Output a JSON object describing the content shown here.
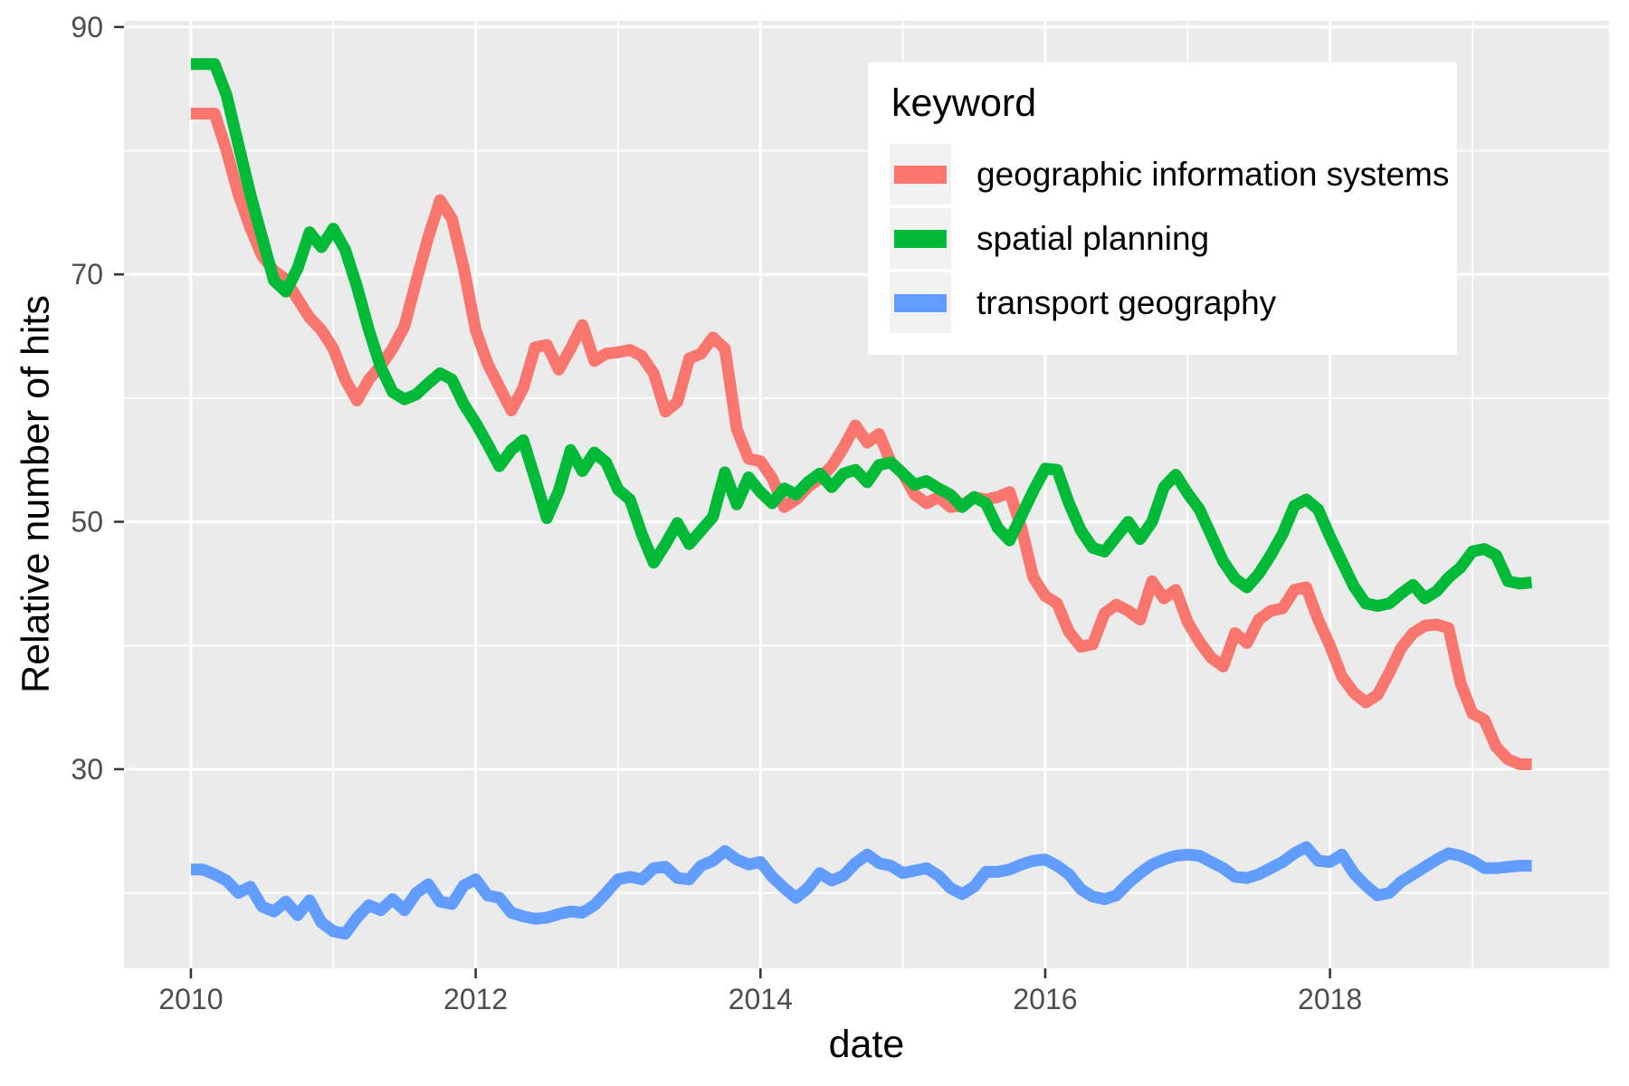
{
  "chart_data": {
    "type": "line",
    "title": "",
    "xlabel": "date",
    "ylabel": "Relative number of hits",
    "legend": {
      "title": "keyword",
      "position": "inside-top-right"
    },
    "x_unit": "year-month",
    "x_start": 2010.0,
    "x_step": 0.0833333,
    "x_domain": [
      2009.53,
      2019.96
    ],
    "y_domain": [
      13.9,
      90.5
    ],
    "x_ticks": {
      "major": [
        2010,
        2012,
        2014,
        2016,
        2018
      ],
      "minor": [
        2011,
        2013,
        2015,
        2017,
        2019
      ]
    },
    "y_ticks": {
      "major": [
        30,
        50,
        70,
        90
      ],
      "minor": [
        20,
        40,
        60,
        80
      ]
    },
    "grid": true,
    "panel_bg": "#EBEBEB",
    "grid_color": "#FFFFFF",
    "tick_color": "#333333",
    "tick_label_color": "#4D4D4D",
    "line_width": 13,
    "series": [
      {
        "name": "geographic information systems",
        "color": "#F8766D",
        "values": [
          83,
          83,
          83,
          80,
          76.5,
          73.8,
          71.5,
          70.3,
          69.6,
          68,
          66.5,
          65.5,
          64,
          61.5,
          59.8,
          61.5,
          62.6,
          64,
          65.8,
          69.5,
          73,
          76,
          74.5,
          70.5,
          65.5,
          62.8,
          60.9,
          59,
          60.8,
          64.1,
          64.3,
          62.3,
          64,
          65.9,
          63,
          63.6,
          63.7,
          63.9,
          63.4,
          62,
          58.9,
          59.7,
          63.2,
          63.6,
          64.9,
          64,
          57.5,
          55.1,
          54.9,
          53.5,
          51.2,
          51.8,
          52.8,
          53.5,
          54.5,
          56,
          57.8,
          56.4,
          57.1,
          54.8,
          53.9,
          52.2,
          51.5,
          52,
          51.2,
          51.3,
          52,
          51.8,
          52,
          52.4,
          49.5,
          45.5,
          44,
          43.4,
          41.1,
          39.9,
          40.1,
          42.6,
          43.3,
          42.8,
          42.1,
          45.2,
          43.8,
          44.5,
          41.9,
          40.3,
          39,
          38.3,
          41,
          40.2,
          42.1,
          42.8,
          43,
          44.5,
          44.7,
          42.1,
          40,
          37.5,
          36.2,
          35.4,
          36,
          37.8,
          39.8,
          41,
          41.6,
          41.7,
          41.4,
          37,
          34.5,
          34,
          31.8,
          30.8,
          30.4,
          30.4
        ]
      },
      {
        "name": "spatial planning",
        "color": "#00BA38",
        "values": [
          87,
          87,
          87,
          84.5,
          80.5,
          76.5,
          73,
          69.5,
          68.6,
          70.5,
          73.4,
          72.2,
          73.7,
          72,
          69,
          65.5,
          62.5,
          60.5,
          59.9,
          60.3,
          61.2,
          62,
          61.5,
          59.5,
          58,
          56.3,
          54.5,
          55.8,
          56.6,
          53.5,
          50.3,
          52.5,
          55.8,
          54.1,
          55.6,
          54.8,
          52.6,
          51.8,
          49,
          46.7,
          48.2,
          49.9,
          48.2,
          49.3,
          50.4,
          54,
          51.4,
          53.6,
          52.4,
          51.5,
          52.7,
          52.2,
          53.2,
          53.9,
          52.8,
          53.9,
          54.2,
          53.2,
          54.6,
          54.8,
          53.9,
          53,
          53.3,
          52.7,
          52.2,
          51.2,
          52,
          51.5,
          49.5,
          48.5,
          50.5,
          52.5,
          54.3,
          54.2,
          51.5,
          49.3,
          47.9,
          47.6,
          48.8,
          50,
          48.6,
          50,
          52.8,
          53.8,
          52.3,
          51,
          48.9,
          46.8,
          45.4,
          44.7,
          45.8,
          47.3,
          49,
          51.3,
          51.8,
          51,
          48.8,
          46.8,
          44.8,
          43.4,
          43.2,
          43.4,
          44.2,
          44.9,
          43.8,
          44.4,
          45.5,
          46.3,
          47.6,
          47.8,
          47.3,
          45.2,
          45,
          45.1
        ]
      },
      {
        "name": "transport geography",
        "color": "#619CFF",
        "values": [
          21.9,
          21.9,
          21.5,
          21,
          20,
          20.5,
          18.9,
          18.5,
          19.3,
          18.2,
          19.4,
          17.6,
          16.9,
          16.7,
          18,
          19,
          18.6,
          19.5,
          18.6,
          20,
          20.7,
          19.3,
          19.1,
          20.6,
          21.1,
          19.8,
          19.6,
          18.4,
          18.1,
          17.9,
          18,
          18.3,
          18.5,
          18.4,
          19,
          20,
          21.1,
          21.3,
          21.1,
          22,
          22.1,
          21.2,
          21.1,
          22.2,
          22.6,
          23.4,
          22.7,
          22.3,
          22.5,
          21.3,
          20.4,
          19.6,
          20.4,
          21.6,
          21,
          21.4,
          22.4,
          23.1,
          22.4,
          22.2,
          21.6,
          21.8,
          22,
          21.4,
          20.4,
          19.9,
          20.5,
          21.7,
          21.7,
          21.9,
          22.3,
          22.6,
          22.7,
          22.2,
          21.5,
          20.3,
          19.7,
          19.5,
          19.8,
          20.8,
          21.6,
          22.3,
          22.7,
          23,
          23.1,
          23,
          22.5,
          22,
          21.3,
          21.2,
          21.5,
          22,
          22.5,
          23.2,
          23.7,
          22.6,
          22.5,
          23.1,
          21.6,
          20.6,
          19.8,
          20,
          20.9,
          21.5,
          22.1,
          22.7,
          23.2,
          23,
          22.6,
          22,
          22,
          22.1,
          22.2,
          22.2
        ]
      }
    ]
  }
}
